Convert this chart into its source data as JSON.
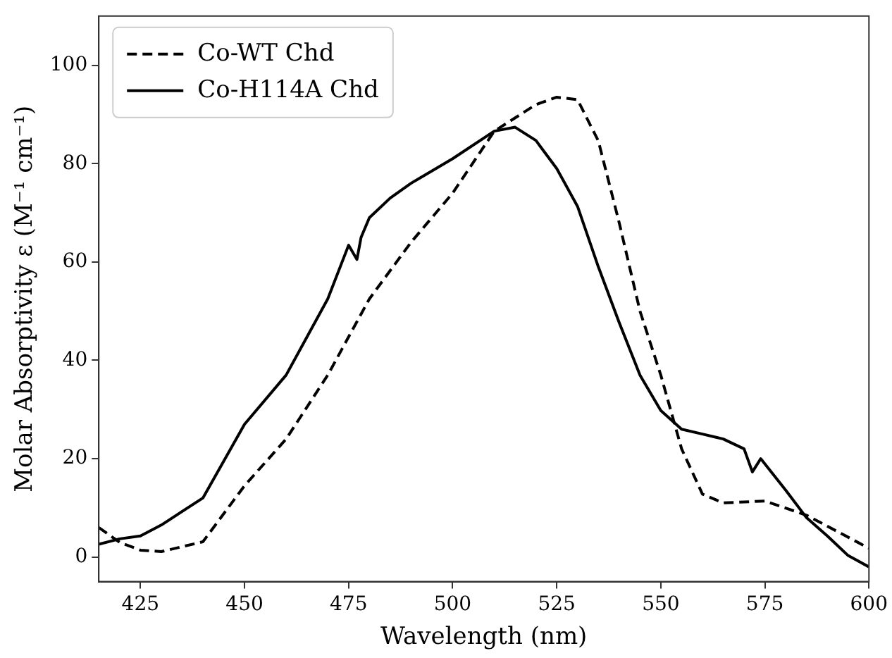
{
  "chart_data": {
    "type": "line",
    "xlabel": "Wavelength (nm)",
    "ylabel": "Molar Absorptivity ε (M⁻¹ cm⁻¹)",
    "xlim": [
      415,
      600
    ],
    "ylim": [
      -5,
      110
    ],
    "xticks": [
      425,
      450,
      475,
      500,
      525,
      550,
      575,
      600
    ],
    "yticks": [
      0,
      20,
      40,
      60,
      80,
      100
    ],
    "grid": false,
    "legend": "top left",
    "marker": "none",
    "series": [
      {
        "name": "Co-WT Chd",
        "color": "#000000",
        "line_style": "dashed",
        "x": [
          415,
          420,
          425,
          430,
          440,
          450,
          460,
          470,
          480,
          490,
          500,
          510,
          520,
          525,
          530,
          535,
          540,
          545,
          550,
          555,
          560,
          565,
          575,
          585,
          600
        ],
        "values": [
          6,
          3,
          1.4,
          1.1,
          3.1,
          14.5,
          24,
          37,
          52.5,
          64,
          74,
          86.6,
          92,
          93.5,
          93,
          84.6,
          68,
          50,
          37,
          22,
          12.8,
          11,
          11.4,
          8.5,
          1.8
        ]
      },
      {
        "name": "Co-H114A Chd",
        "color": "#000000",
        "line_style": "solid",
        "x": [
          415,
          420,
          425,
          430,
          440,
          450,
          460,
          470,
          475,
          477,
          478,
          480,
          485,
          490,
          500,
          510,
          515,
          520,
          525,
          530,
          535,
          540,
          545,
          550,
          555,
          560,
          565,
          570,
          572,
          574,
          580,
          585,
          590,
          595,
          600
        ],
        "values": [
          2.6,
          3.7,
          4.3,
          6.5,
          12,
          27,
          37,
          52.5,
          63.4,
          60.5,
          65,
          69,
          73,
          76,
          81,
          86.6,
          87.4,
          84.7,
          79,
          71.3,
          59,
          47.7,
          37,
          29.8,
          26,
          25,
          24,
          22,
          17.3,
          20,
          13.6,
          8,
          4.3,
          0.3,
          -2
        ]
      }
    ]
  }
}
